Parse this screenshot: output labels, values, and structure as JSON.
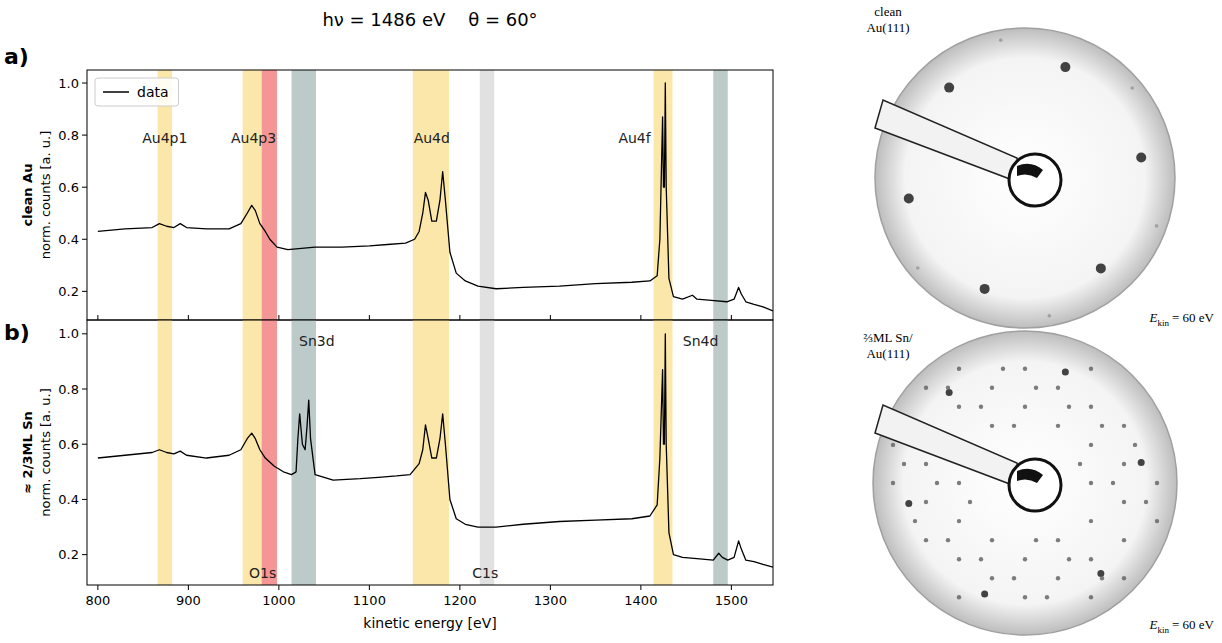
{
  "title": "hν = 1486 eV    θ = 60°",
  "chart_data": [
    {
      "type": "line",
      "label": "a)",
      "title": "clean Au",
      "ylabel": "norm. counts [a. u.]",
      "xlim": [
        788,
        1546
      ],
      "xticks": [
        800,
        900,
        1000,
        1100,
        1200,
        1300,
        1400,
        1500
      ],
      "ylim": [
        0.09,
        1.05
      ],
      "yticks": [
        0.2,
        0.4,
        0.6,
        0.8,
        {
          "value": 1,
          "label": "1.0"
        }
      ],
      "tick_labels": "y",
      "legend": "upper left",
      "x": [
        800,
        830,
        860,
        868,
        876,
        884,
        891,
        898,
        920,
        945,
        958,
        965,
        970,
        974,
        979,
        985,
        990,
        998,
        1010,
        1040,
        1070,
        1100,
        1120,
        1140,
        1150,
        1155,
        1159,
        1162,
        1165,
        1169,
        1174,
        1178,
        1181,
        1184,
        1189,
        1196,
        1206,
        1220,
        1240,
        1270,
        1310,
        1350,
        1390,
        1410,
        1418,
        1421,
        1424,
        1425,
        1426,
        1427,
        1428,
        1431,
        1436,
        1446,
        1457,
        1462,
        1478,
        1495,
        1503,
        1508,
        1511,
        1516,
        1525,
        1535,
        1546
      ],
      "series": [
        {
          "name": "data",
          "color": "#000000",
          "values": [
            0.43,
            0.44,
            0.445,
            0.46,
            0.45,
            0.445,
            0.46,
            0.445,
            0.44,
            0.44,
            0.46,
            0.5,
            0.53,
            0.51,
            0.46,
            0.43,
            0.4,
            0.37,
            0.36,
            0.37,
            0.37,
            0.375,
            0.38,
            0.385,
            0.4,
            0.43,
            0.5,
            0.58,
            0.55,
            0.47,
            0.47,
            0.55,
            0.66,
            0.55,
            0.35,
            0.27,
            0.24,
            0.22,
            0.21,
            0.215,
            0.22,
            0.23,
            0.235,
            0.24,
            0.26,
            0.4,
            0.87,
            0.6,
            0.6,
            1.0,
            0.6,
            0.25,
            0.18,
            0.17,
            0.185,
            0.17,
            0.165,
            0.16,
            0.17,
            0.215,
            0.19,
            0.16,
            0.15,
            0.14,
            0.125
          ]
        }
      ],
      "regions": [
        {
          "xmin": 866,
          "xmax": 882,
          "color": "#fbe39b"
        },
        {
          "xmin": 960,
          "xmax": 981,
          "color": "#fbe39b"
        },
        {
          "xmin": 981,
          "xmax": 998,
          "color": "#f28484"
        },
        {
          "xmin": 1014,
          "xmax": 1041,
          "color": "#b2c1c1"
        },
        {
          "xmin": 1148,
          "xmax": 1188,
          "color": "#fbe39b"
        },
        {
          "xmin": 1222,
          "xmax": 1238,
          "color": "#dcdcdc"
        },
        {
          "xmin": 1414,
          "xmax": 1435,
          "color": "#fbe39b"
        },
        {
          "xmin": 1480,
          "xmax": 1496,
          "color": "#b2c1c1"
        }
      ],
      "annotations": [
        {
          "text": "Au4p1",
          "x": 874,
          "y": 0.785
        },
        {
          "text": "Au4p3",
          "x": 972,
          "y": 0.785
        },
        {
          "text": "Au4d",
          "x": 1169,
          "y": 0.785
        },
        {
          "text": "Au4f",
          "x": 1393,
          "y": 0.785
        }
      ]
    },
    {
      "type": "line",
      "label": "b)",
      "title": "≈ 2/3ML Sn",
      "ylabel": "norm. counts [a. u.]",
      "xlabel": "kinetic energy [eV]",
      "xlim": [
        788,
        1546
      ],
      "xticks": [
        800,
        900,
        1000,
        1100,
        1200,
        1300,
        1400,
        1500
      ],
      "ylim": [
        0.09,
        1.05
      ],
      "yticks": [
        0.2,
        0.4,
        0.6,
        0.8,
        {
          "value": 1,
          "label": "1.0"
        }
      ],
      "x": [
        800,
        830,
        860,
        868,
        876,
        884,
        891,
        898,
        920,
        945,
        958,
        965,
        970,
        974,
        979,
        985,
        995,
        1005,
        1014,
        1019,
        1021,
        1023,
        1026,
        1029,
        1031,
        1033,
        1035,
        1040,
        1060,
        1090,
        1110,
        1130,
        1145,
        1150,
        1155,
        1159,
        1162,
        1165,
        1169,
        1174,
        1178,
        1181,
        1184,
        1189,
        1196,
        1206,
        1220,
        1240,
        1270,
        1310,
        1350,
        1390,
        1410,
        1418,
        1421,
        1424,
        1425,
        1426,
        1427,
        1428,
        1431,
        1436,
        1446,
        1465,
        1480,
        1486,
        1490,
        1496,
        1503,
        1508,
        1511,
        1516,
        1525,
        1535,
        1546
      ],
      "series": [
        {
          "color": "#000000",
          "values": [
            0.55,
            0.56,
            0.57,
            0.58,
            0.57,
            0.565,
            0.575,
            0.56,
            0.55,
            0.56,
            0.58,
            0.62,
            0.64,
            0.62,
            0.58,
            0.55,
            0.52,
            0.5,
            0.49,
            0.5,
            0.62,
            0.71,
            0.6,
            0.58,
            0.66,
            0.76,
            0.62,
            0.49,
            0.47,
            0.475,
            0.48,
            0.485,
            0.49,
            0.51,
            0.53,
            0.58,
            0.67,
            0.62,
            0.55,
            0.55,
            0.62,
            0.71,
            0.6,
            0.4,
            0.33,
            0.31,
            0.3,
            0.3,
            0.31,
            0.32,
            0.325,
            0.33,
            0.34,
            0.38,
            0.55,
            0.87,
            0.6,
            0.6,
            1.0,
            0.6,
            0.28,
            0.2,
            0.19,
            0.185,
            0.18,
            0.205,
            0.19,
            0.18,
            0.19,
            0.25,
            0.22,
            0.18,
            0.175,
            0.165,
            0.155
          ]
        }
      ],
      "regions": [
        {
          "xmin": 866,
          "xmax": 882,
          "color": "#fbe39b"
        },
        {
          "xmin": 960,
          "xmax": 981,
          "color": "#fbe39b"
        },
        {
          "xmin": 981,
          "xmax": 998,
          "color": "#f28484"
        },
        {
          "xmin": 1014,
          "xmax": 1041,
          "color": "#b2c1c1"
        },
        {
          "xmin": 1148,
          "xmax": 1188,
          "color": "#fbe39b"
        },
        {
          "xmin": 1222,
          "xmax": 1238,
          "color": "#dcdcdc"
        },
        {
          "xmin": 1414,
          "xmax": 1435,
          "color": "#fbe39b"
        },
        {
          "xmin": 1480,
          "xmax": 1496,
          "color": "#b2c1c1"
        }
      ],
      "annotations": [
        {
          "text": "Sn3d",
          "x": 1042,
          "y": 0.97
        },
        {
          "text": "Sn4d",
          "x": 1466,
          "y": 0.97
        },
        {
          "text": "O1s",
          "x": 982,
          "y": 0.13
        },
        {
          "text": "C1s",
          "x": 1228,
          "y": 0.13
        }
      ]
    }
  ],
  "images": [
    {
      "label": [
        "clean",
        "Au(111)"
      ],
      "energy_label": [
        "E",
        "kin",
        "= 60 eV"
      ],
      "pattern": "clean"
    },
    {
      "label": [
        "⅔ML Sn/",
        "Au(111)"
      ],
      "energy_label": [
        "E",
        "kin",
        "= 60 eV"
      ],
      "pattern": "sn"
    }
  ]
}
